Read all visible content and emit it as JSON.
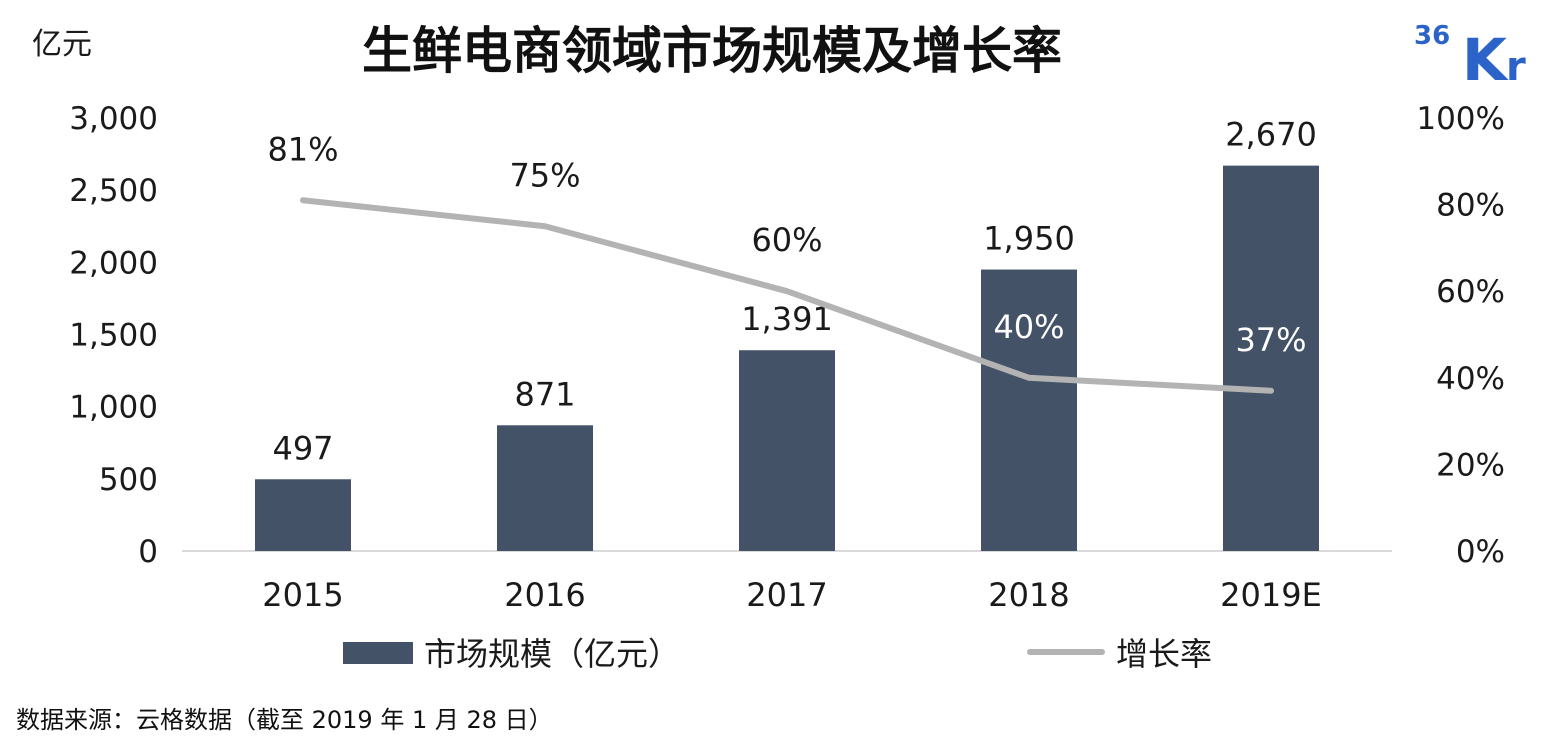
{
  "header": {
    "title": "生鲜电商领域市场规模及增长率",
    "unit": "亿元",
    "logo": "36Kr"
  },
  "source": "数据来源：云格数据（截至 2019 年 1 月 28 日）",
  "colors": {
    "bar": "#435266",
    "line": "#b3b3b3",
    "axis": "#d9d9d9",
    "logo": "#2b63c8"
  },
  "chart_data": {
    "type": "bar",
    "title": "生鲜电商领域市场规模及增长率",
    "categories": [
      "2015",
      "2016",
      "2017",
      "2018",
      "2019E"
    ],
    "ylabel": "亿元",
    "ylim": [
      0,
      3000
    ],
    "yticks": [
      "0",
      "500",
      "1,000",
      "1,500",
      "2,000",
      "2,500",
      "3,000"
    ],
    "y2lim": [
      0,
      100
    ],
    "y2ticks": [
      "0%",
      "20%",
      "40%",
      "60%",
      "80%",
      "100%"
    ],
    "legend_position": "bottom",
    "grid": false,
    "series": [
      {
        "name": "市场规模（亿元）",
        "type": "bar",
        "axis": "left",
        "values": [
          497,
          871,
          1391,
          1950,
          2670
        ],
        "labels": [
          "497",
          "871",
          "1,391",
          "1,950",
          "2,670"
        ]
      },
      {
        "name": "增长率",
        "type": "line",
        "axis": "right",
        "values": [
          81,
          75,
          60,
          40,
          37
        ],
        "labels": [
          "81%",
          "75%",
          "60%",
          "40%",
          "37%"
        ]
      }
    ]
  }
}
